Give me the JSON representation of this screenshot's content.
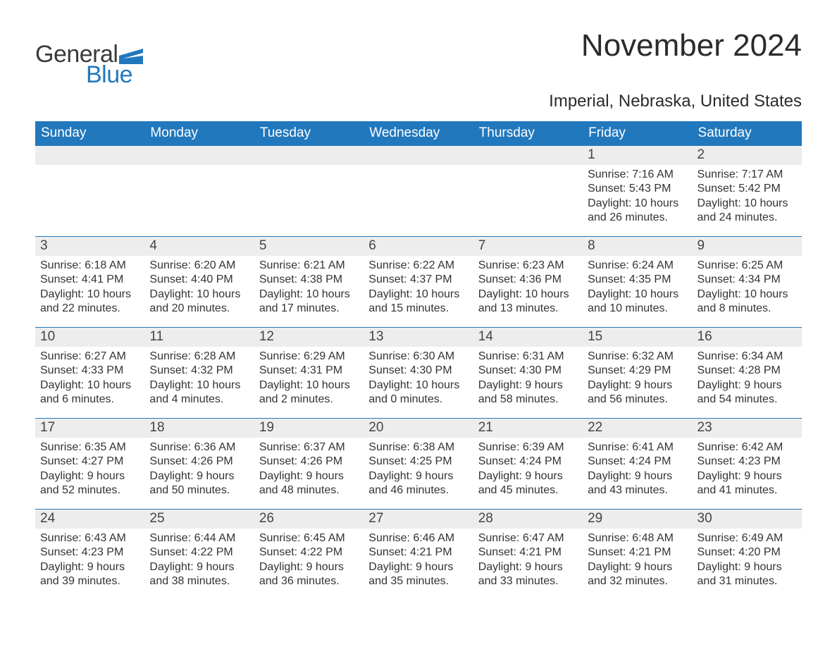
{
  "logo": {
    "text_general": "General",
    "text_blue": "Blue",
    "flag_color": "#2278bd"
  },
  "title": "November 2024",
  "subtitle": "Imperial, Nebraska, United States",
  "colors": {
    "header_bg": "#2278bd",
    "header_text": "#ffffff",
    "daynum_bg": "#ededed",
    "daynum_text": "#444444",
    "body_text": "#333333",
    "rule": "#2278bd",
    "page_bg": "#ffffff"
  },
  "days_of_week": [
    "Sunday",
    "Monday",
    "Tuesday",
    "Wednesday",
    "Thursday",
    "Friday",
    "Saturday"
  ],
  "weeks": [
    [
      {
        "n": "",
        "sunrise": "",
        "sunset": "",
        "daylight": ""
      },
      {
        "n": "",
        "sunrise": "",
        "sunset": "",
        "daylight": ""
      },
      {
        "n": "",
        "sunrise": "",
        "sunset": "",
        "daylight": ""
      },
      {
        "n": "",
        "sunrise": "",
        "sunset": "",
        "daylight": ""
      },
      {
        "n": "",
        "sunrise": "",
        "sunset": "",
        "daylight": ""
      },
      {
        "n": "1",
        "sunrise": "Sunrise: 7:16 AM",
        "sunset": "Sunset: 5:43 PM",
        "daylight": "Daylight: 10 hours and 26 minutes."
      },
      {
        "n": "2",
        "sunrise": "Sunrise: 7:17 AM",
        "sunset": "Sunset: 5:42 PM",
        "daylight": "Daylight: 10 hours and 24 minutes."
      }
    ],
    [
      {
        "n": "3",
        "sunrise": "Sunrise: 6:18 AM",
        "sunset": "Sunset: 4:41 PM",
        "daylight": "Daylight: 10 hours and 22 minutes."
      },
      {
        "n": "4",
        "sunrise": "Sunrise: 6:20 AM",
        "sunset": "Sunset: 4:40 PM",
        "daylight": "Daylight: 10 hours and 20 minutes."
      },
      {
        "n": "5",
        "sunrise": "Sunrise: 6:21 AM",
        "sunset": "Sunset: 4:38 PM",
        "daylight": "Daylight: 10 hours and 17 minutes."
      },
      {
        "n": "6",
        "sunrise": "Sunrise: 6:22 AM",
        "sunset": "Sunset: 4:37 PM",
        "daylight": "Daylight: 10 hours and 15 minutes."
      },
      {
        "n": "7",
        "sunrise": "Sunrise: 6:23 AM",
        "sunset": "Sunset: 4:36 PM",
        "daylight": "Daylight: 10 hours and 13 minutes."
      },
      {
        "n": "8",
        "sunrise": "Sunrise: 6:24 AM",
        "sunset": "Sunset: 4:35 PM",
        "daylight": "Daylight: 10 hours and 10 minutes."
      },
      {
        "n": "9",
        "sunrise": "Sunrise: 6:25 AM",
        "sunset": "Sunset: 4:34 PM",
        "daylight": "Daylight: 10 hours and 8 minutes."
      }
    ],
    [
      {
        "n": "10",
        "sunrise": "Sunrise: 6:27 AM",
        "sunset": "Sunset: 4:33 PM",
        "daylight": "Daylight: 10 hours and 6 minutes."
      },
      {
        "n": "11",
        "sunrise": "Sunrise: 6:28 AM",
        "sunset": "Sunset: 4:32 PM",
        "daylight": "Daylight: 10 hours and 4 minutes."
      },
      {
        "n": "12",
        "sunrise": "Sunrise: 6:29 AM",
        "sunset": "Sunset: 4:31 PM",
        "daylight": "Daylight: 10 hours and 2 minutes."
      },
      {
        "n": "13",
        "sunrise": "Sunrise: 6:30 AM",
        "sunset": "Sunset: 4:30 PM",
        "daylight": "Daylight: 10 hours and 0 minutes."
      },
      {
        "n": "14",
        "sunrise": "Sunrise: 6:31 AM",
        "sunset": "Sunset: 4:30 PM",
        "daylight": "Daylight: 9 hours and 58 minutes."
      },
      {
        "n": "15",
        "sunrise": "Sunrise: 6:32 AM",
        "sunset": "Sunset: 4:29 PM",
        "daylight": "Daylight: 9 hours and 56 minutes."
      },
      {
        "n": "16",
        "sunrise": "Sunrise: 6:34 AM",
        "sunset": "Sunset: 4:28 PM",
        "daylight": "Daylight: 9 hours and 54 minutes."
      }
    ],
    [
      {
        "n": "17",
        "sunrise": "Sunrise: 6:35 AM",
        "sunset": "Sunset: 4:27 PM",
        "daylight": "Daylight: 9 hours and 52 minutes."
      },
      {
        "n": "18",
        "sunrise": "Sunrise: 6:36 AM",
        "sunset": "Sunset: 4:26 PM",
        "daylight": "Daylight: 9 hours and 50 minutes."
      },
      {
        "n": "19",
        "sunrise": "Sunrise: 6:37 AM",
        "sunset": "Sunset: 4:26 PM",
        "daylight": "Daylight: 9 hours and 48 minutes."
      },
      {
        "n": "20",
        "sunrise": "Sunrise: 6:38 AM",
        "sunset": "Sunset: 4:25 PM",
        "daylight": "Daylight: 9 hours and 46 minutes."
      },
      {
        "n": "21",
        "sunrise": "Sunrise: 6:39 AM",
        "sunset": "Sunset: 4:24 PM",
        "daylight": "Daylight: 9 hours and 45 minutes."
      },
      {
        "n": "22",
        "sunrise": "Sunrise: 6:41 AM",
        "sunset": "Sunset: 4:24 PM",
        "daylight": "Daylight: 9 hours and 43 minutes."
      },
      {
        "n": "23",
        "sunrise": "Sunrise: 6:42 AM",
        "sunset": "Sunset: 4:23 PM",
        "daylight": "Daylight: 9 hours and 41 minutes."
      }
    ],
    [
      {
        "n": "24",
        "sunrise": "Sunrise: 6:43 AM",
        "sunset": "Sunset: 4:23 PM",
        "daylight": "Daylight: 9 hours and 39 minutes."
      },
      {
        "n": "25",
        "sunrise": "Sunrise: 6:44 AM",
        "sunset": "Sunset: 4:22 PM",
        "daylight": "Daylight: 9 hours and 38 minutes."
      },
      {
        "n": "26",
        "sunrise": "Sunrise: 6:45 AM",
        "sunset": "Sunset: 4:22 PM",
        "daylight": "Daylight: 9 hours and 36 minutes."
      },
      {
        "n": "27",
        "sunrise": "Sunrise: 6:46 AM",
        "sunset": "Sunset: 4:21 PM",
        "daylight": "Daylight: 9 hours and 35 minutes."
      },
      {
        "n": "28",
        "sunrise": "Sunrise: 6:47 AM",
        "sunset": "Sunset: 4:21 PM",
        "daylight": "Daylight: 9 hours and 33 minutes."
      },
      {
        "n": "29",
        "sunrise": "Sunrise: 6:48 AM",
        "sunset": "Sunset: 4:21 PM",
        "daylight": "Daylight: 9 hours and 32 minutes."
      },
      {
        "n": "30",
        "sunrise": "Sunrise: 6:49 AM",
        "sunset": "Sunset: 4:20 PM",
        "daylight": "Daylight: 9 hours and 31 minutes."
      }
    ]
  ]
}
